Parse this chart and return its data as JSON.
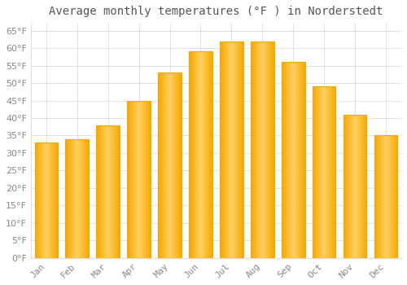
{
  "title": "Average monthly temperatures (°F ) in Norderstedt",
  "months": [
    "Jan",
    "Feb",
    "Mar",
    "Apr",
    "May",
    "Jun",
    "Jul",
    "Aug",
    "Sep",
    "Oct",
    "Nov",
    "Dec"
  ],
  "values": [
    33,
    34,
    38,
    45,
    53,
    59,
    62,
    62,
    56,
    49,
    41,
    35
  ],
  "bar_color_light": "#FFD060",
  "bar_color_dark": "#F5A800",
  "background_color": "#FFFFFF",
  "grid_color": "#DDDDDD",
  "text_color": "#888888",
  "title_color": "#555555",
  "ylim": [
    0,
    67
  ],
  "yticks": [
    0,
    5,
    10,
    15,
    20,
    25,
    30,
    35,
    40,
    45,
    50,
    55,
    60,
    65
  ],
  "title_fontsize": 10,
  "tick_fontsize": 8,
  "figsize": [
    5.0,
    3.5
  ],
  "dpi": 100,
  "bar_width": 0.75
}
